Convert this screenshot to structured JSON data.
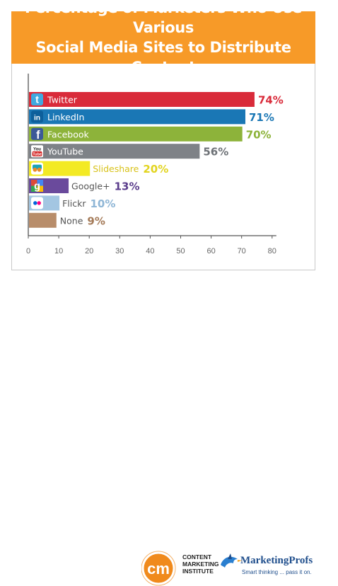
{
  "header": {
    "title_line1": "Percentage of  Marketers Who Use Various",
    "title_line2": "Social Media Sites to Distribute Content"
  },
  "chart_data": {
    "type": "bar",
    "orientation": "horizontal",
    "categories": [
      "Twitter",
      "LinkedIn",
      "Facebook",
      "YouTube",
      "Slideshare",
      "Google+",
      "Flickr",
      "None"
    ],
    "values": [
      74,
      71,
      70,
      56,
      20,
      13,
      10,
      9
    ],
    "value_labels": [
      "74%",
      "71%",
      "70%",
      "56%",
      "20%",
      "13%",
      "10%",
      "9%"
    ],
    "bar_colors": [
      "#d92b3a",
      "#1a77b5",
      "#8db33a",
      "#7e8287",
      "#f3ea24",
      "#6a4a9c",
      "#a3c6e2",
      "#b88d6a"
    ],
    "label_colors": [
      "#d92b3a",
      "#1a77b5",
      "#8db33a",
      "#6e7277",
      "#e2d41f",
      "#5b3d8c",
      "#8fb6d6",
      "#a47a58"
    ],
    "icons": [
      "twitter-icon",
      "linkedin-icon",
      "facebook-icon",
      "youtube-icon",
      "slideshare-icon",
      "google-plus-icon",
      "flickr-icon",
      "none-swatch"
    ],
    "x_ticks": [
      0,
      10,
      20,
      30,
      40,
      50,
      60,
      70,
      80
    ],
    "xlim": [
      0,
      80
    ],
    "grid": false,
    "title": "Percentage of  Marketers Who Use Various Social Media Sites to Distribute Content"
  },
  "footer": {
    "cmi_initials": "cm",
    "cmi_line1": "CONTENT",
    "cmi_line2": "MARKETING",
    "cmi_line3": "INSTITUTE",
    "mp_name": "MarketingProfs",
    "mp_tagline": "Smart thinking ... pass it on."
  },
  "colors": {
    "banner": "#f79a28",
    "cmi_orange": "#f08a1c",
    "mp_blue": "#1f4e8c"
  }
}
